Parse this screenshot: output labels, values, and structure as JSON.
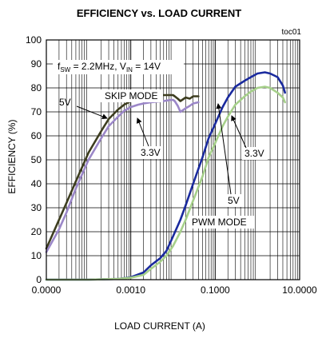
{
  "chart_data": {
    "type": "line",
    "title": "EFFICIENCY vs. LOAD CURRENT",
    "figure_id": "toc01",
    "xlabel": "LOAD CURRENT (A)",
    "ylabel": "EFFICIENCY (%)",
    "x_scale": "log",
    "xlim": [
      1e-05,
      10
    ],
    "ylim": [
      0,
      100
    ],
    "x_tick_values": [
      1e-05,
      0.001,
      0.1,
      10
    ],
    "x_tick_labels": [
      "0.0000",
      "0.0010",
      "0.1000",
      "10.0000"
    ],
    "y_tick_values": [
      0,
      10,
      20,
      30,
      40,
      50,
      60,
      70,
      80,
      90,
      100
    ],
    "y_tick_labels": [
      "0",
      "10",
      "20",
      "30",
      "40",
      "50",
      "60",
      "70",
      "80",
      "90",
      "100"
    ],
    "grid": true,
    "conditions": {
      "prefix": "f",
      "prefix_sub": "SW",
      "mid": " = 2.2MHz, V",
      "mid_sub": "IN",
      "suffix": " = 14V"
    },
    "annotations": {
      "skip_mode": "SKIP MODE",
      "pwm_mode": "PWM MODE",
      "label_5v_skip": "5V",
      "label_33v_skip": "3.3V",
      "label_33v_pwm": "3.3V",
      "label_5v_pwm": "5V"
    },
    "colors": {
      "skip_5v": "#3d3d1f",
      "skip_33v": "#9b87c8",
      "pwm_5v": "#1a2a9e",
      "pwm_33v": "#a6d08a"
    },
    "series": [
      {
        "id": "skip_5v",
        "x": [
          1e-05,
          2e-05,
          3e-05,
          5e-05,
          0.0001,
          0.0002,
          0.0003,
          0.0005,
          0.0007,
          0.001,
          0.0015,
          0.002,
          0.003,
          0.006,
          0.009,
          0.01,
          0.011,
          0.013,
          0.015,
          0.02,
          0.025,
          0.03,
          0.04
        ],
        "y": [
          13,
          25,
          32,
          41,
          53,
          62,
          67,
          71,
          73,
          74.5,
          75.5,
          76,
          76.5,
          77,
          77,
          77,
          76.5,
          75.5,
          74.5,
          76,
          75.5,
          76.5,
          76.5
        ]
      },
      {
        "id": "skip_33v",
        "x": [
          1e-05,
          2e-05,
          3e-05,
          5e-05,
          0.0001,
          0.0002,
          0.0003,
          0.0005,
          0.0007,
          0.001,
          0.0015,
          0.002,
          0.003,
          0.006,
          0.009,
          0.01,
          0.011,
          0.013,
          0.015,
          0.02,
          0.025,
          0.03,
          0.04
        ],
        "y": [
          11.5,
          21,
          28,
          38,
          50,
          59,
          64,
          68,
          70.5,
          72,
          73,
          73.5,
          74,
          74.5,
          75,
          75,
          74.5,
          72.5,
          70,
          71.5,
          72.5,
          73.5,
          74
        ]
      },
      {
        "id": "pwm_5v",
        "x": [
          1e-05,
          0.0001,
          0.0005,
          0.001,
          0.002,
          0.003,
          0.005,
          0.007,
          0.01,
          0.015,
          0.02,
          0.03,
          0.05,
          0.07,
          0.1,
          0.15,
          0.2,
          0.3,
          0.5,
          0.7,
          1,
          1.5,
          2,
          3,
          4,
          4.5
        ],
        "y": [
          0,
          0,
          0.3,
          1,
          3,
          6,
          9,
          12,
          18,
          25,
          31,
          40,
          51,
          59,
          65,
          72,
          76,
          80.5,
          83,
          84.5,
          86,
          86.5,
          86,
          84.5,
          81,
          78
        ]
      },
      {
        "id": "pwm_33v",
        "x": [
          1e-05,
          0.0001,
          0.0005,
          0.001,
          0.002,
          0.003,
          0.005,
          0.007,
          0.01,
          0.015,
          0.02,
          0.03,
          0.05,
          0.07,
          0.1,
          0.15,
          0.2,
          0.3,
          0.5,
          0.7,
          1,
          1.5,
          2,
          3,
          4,
          4.5
        ],
        "y": [
          0,
          0,
          0.3,
          0.8,
          2,
          4.5,
          7.5,
          10,
          14,
          20,
          25,
          33,
          43,
          51,
          57,
          64,
          68,
          73,
          76.5,
          78.5,
          80,
          80.5,
          80,
          78,
          76,
          74
        ]
      }
    ]
  }
}
